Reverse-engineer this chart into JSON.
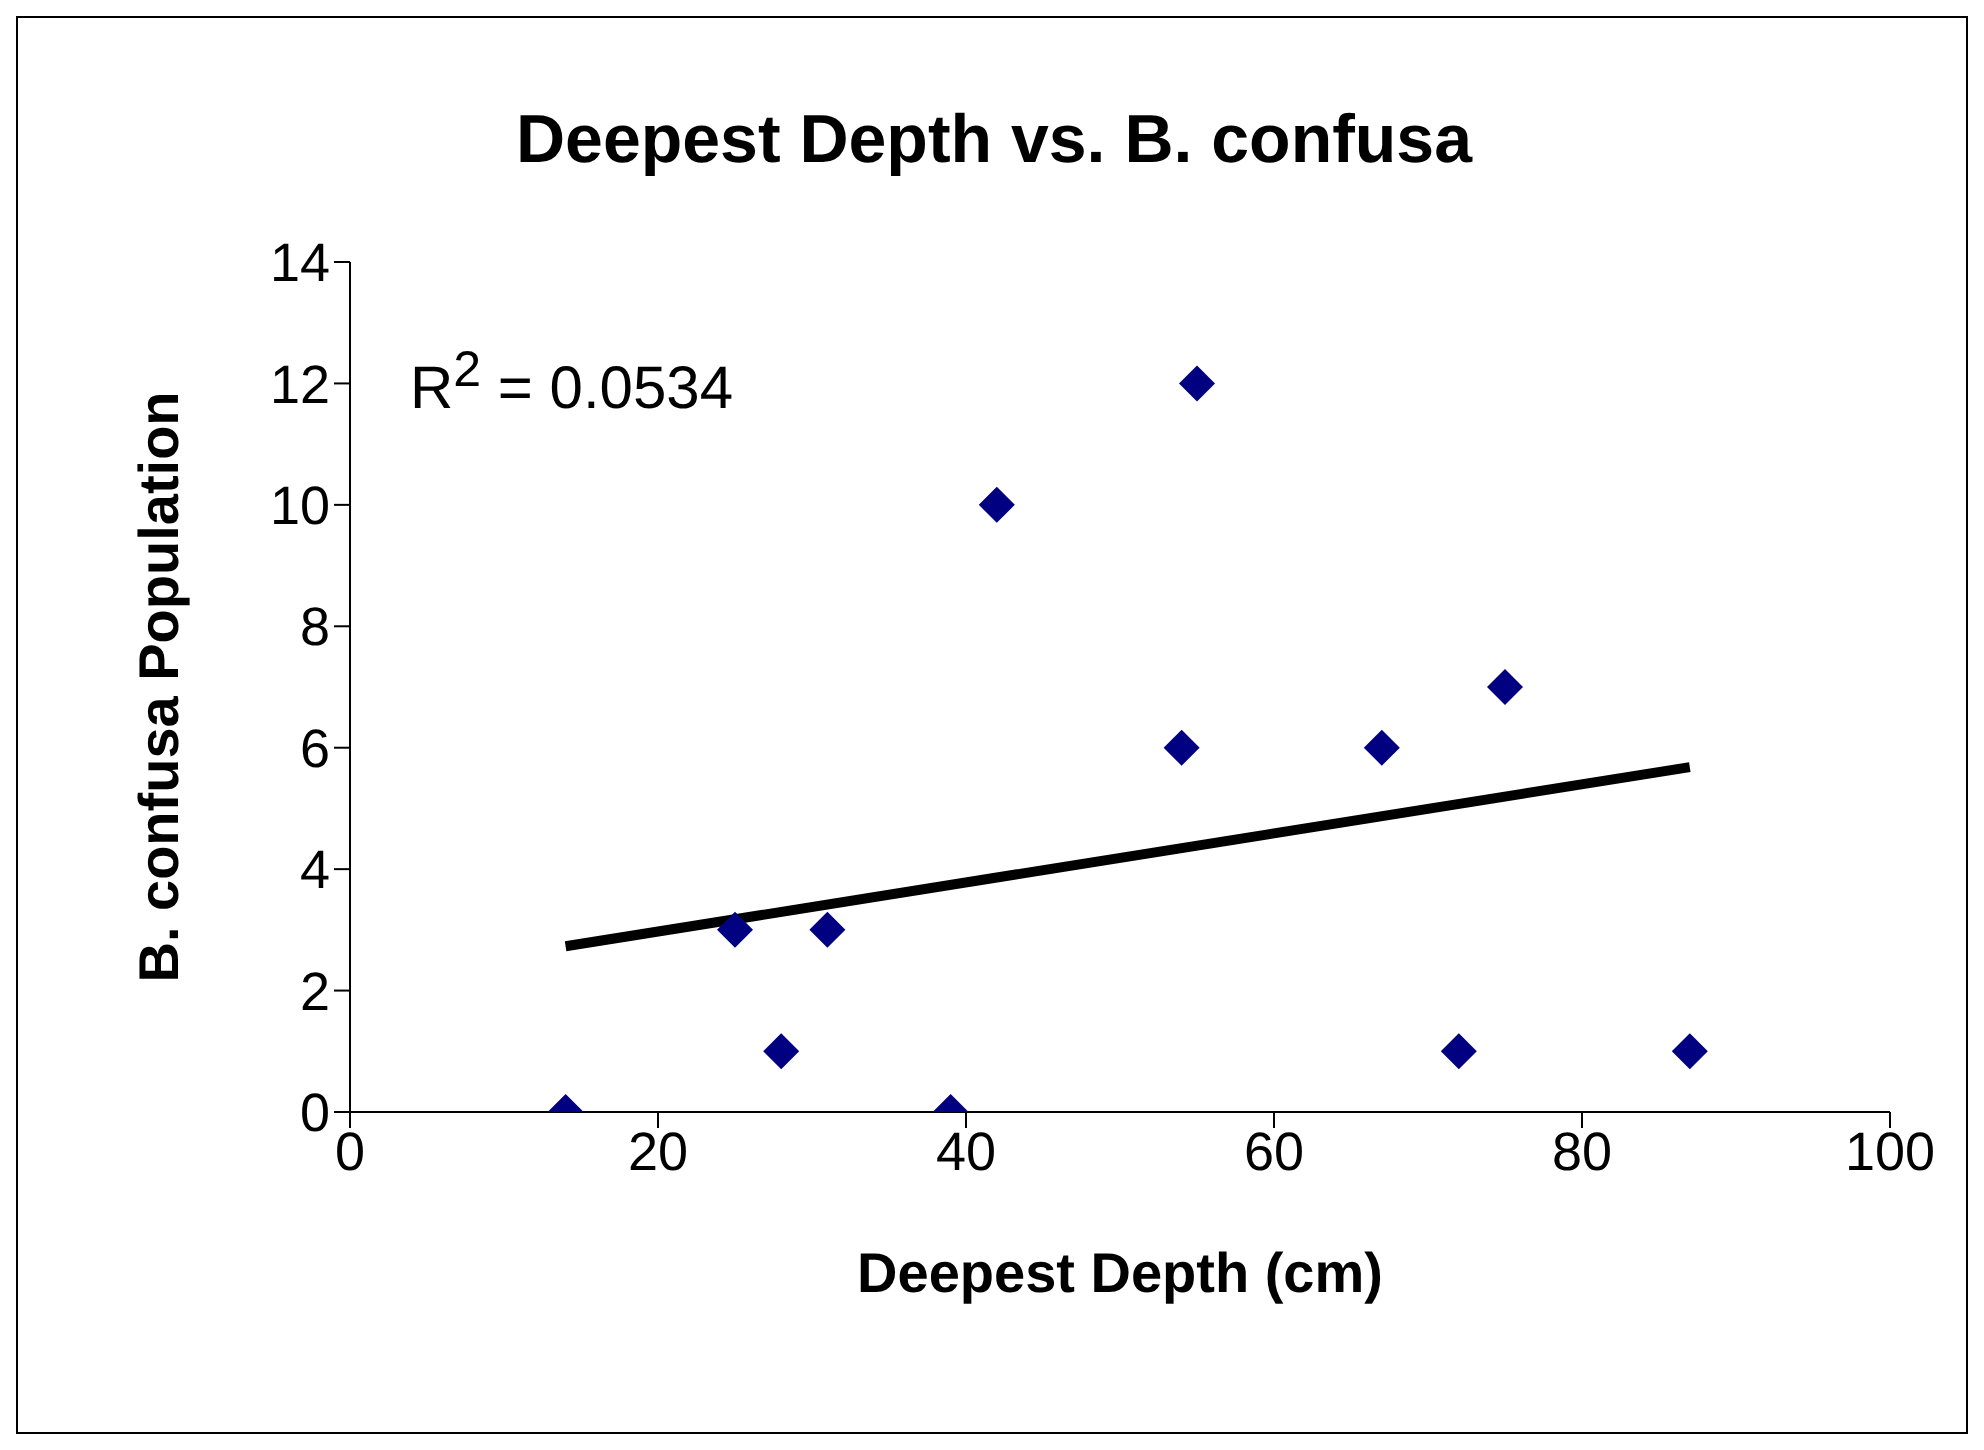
{
  "chart_data": {
    "type": "scatter",
    "title": "Deepest Depth vs. B. confusa",
    "xlabel": "Deepest Depth (cm)",
    "ylabel": "B. confusa Population",
    "x": [
      14,
      25,
      28,
      31,
      39,
      42,
      54,
      55,
      67,
      72,
      75,
      87
    ],
    "series": [
      {
        "color": "#000080",
        "marker": "diamond",
        "values": [
          0,
          3,
          1,
          3,
          0,
          10,
          6,
          12,
          6,
          1,
          7,
          1
        ]
      },
      {
        "type": "line",
        "color": "#000000",
        "x": [
          14,
          87
        ],
        "values": [
          2.73,
          5.68
        ]
      }
    ],
    "grid": false,
    "legend": false,
    "xlim": [
      0,
      100
    ],
    "xticks": [
      0,
      20,
      40,
      60,
      80,
      100
    ],
    "ylim": [
      0,
      14
    ],
    "yticks": [
      0,
      2,
      4,
      6,
      8,
      10,
      12,
      14
    ],
    "annotations": [
      "R$^{2}$ = 0.0534"
    ]
  }
}
